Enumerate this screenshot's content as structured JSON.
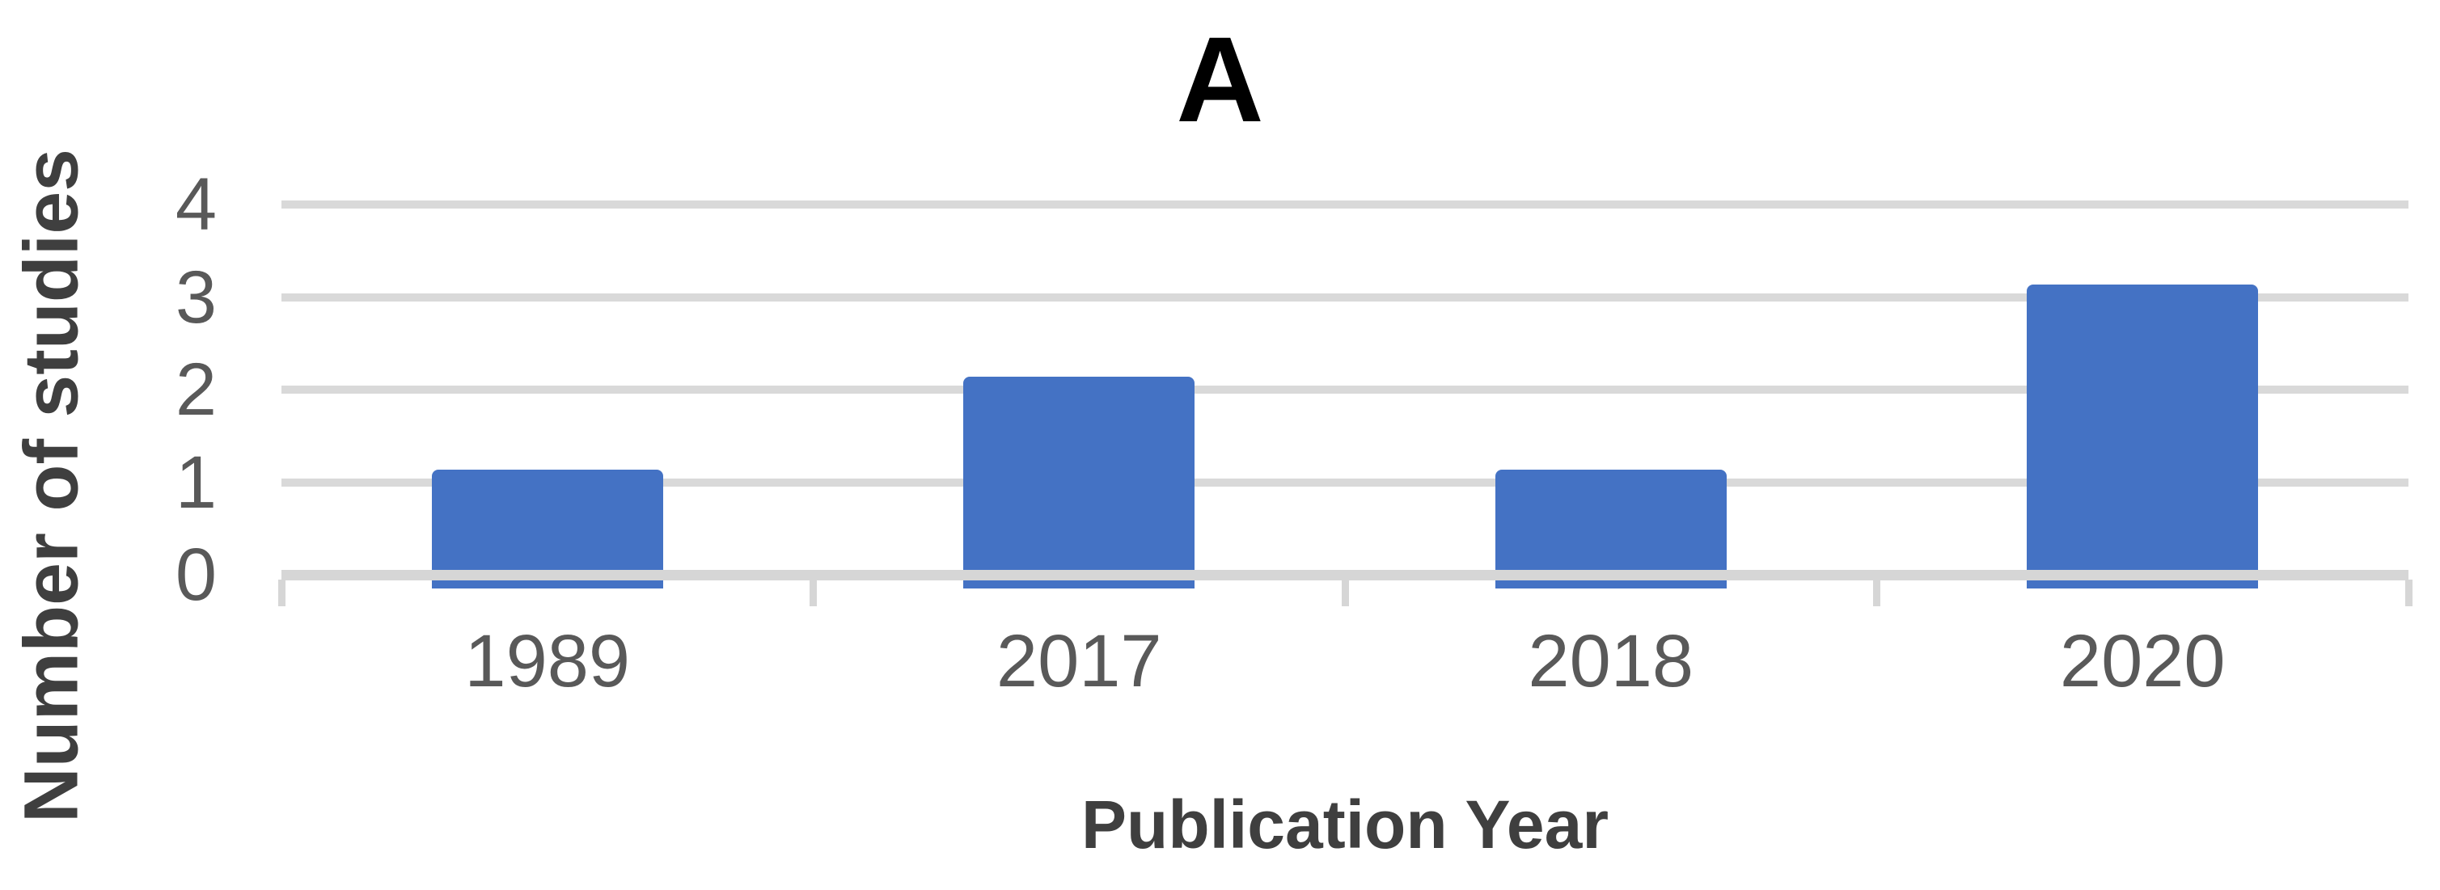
{
  "chart_data": {
    "type": "bar",
    "title": "A",
    "categories": [
      "1989",
      "2017",
      "2018",
      "2020"
    ],
    "values": [
      1,
      2,
      1,
      3
    ],
    "xlabel": "Publication Year",
    "ylabel": "Number of studies",
    "yticks": [
      0,
      1,
      2,
      3,
      4
    ],
    "ylim": [
      0,
      4
    ],
    "grid": "horizontal",
    "legend_position": "none",
    "bar_color": "#4472C4",
    "gridline_color": "#D9D9D9",
    "axis_line_color": "#D6D6D6",
    "tick_label_color": "#595959",
    "axis_title_color": "#3F3F3F",
    "title_color": "#000000"
  }
}
